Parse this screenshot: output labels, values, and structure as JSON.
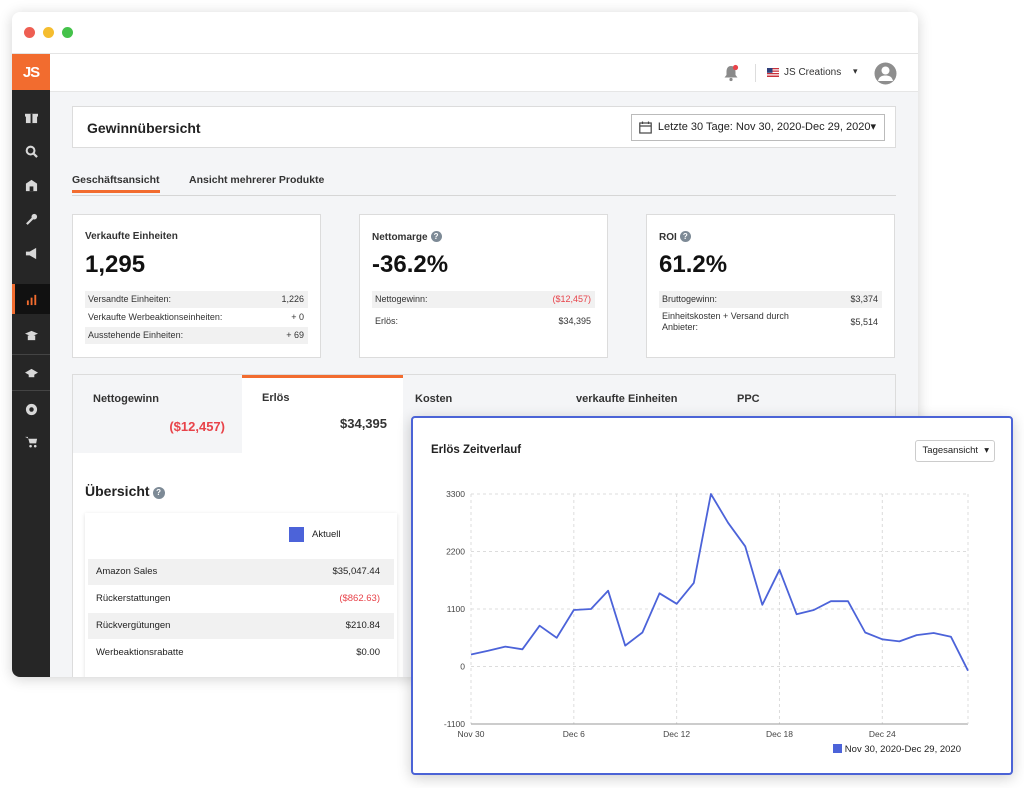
{
  "logo": "JS",
  "header": {
    "account_name": "JS Creations"
  },
  "page": {
    "title": "Gewinnübersicht",
    "date_range": "Letzte 30 Tage: Nov 30, 2020-Dec 29, 2020"
  },
  "tabs": [
    "Geschäftsansicht",
    "Ansicht mehrerer Produkte"
  ],
  "metrics": [
    {
      "label": "Verkaufte Einheiten",
      "value": "1,295",
      "rows": [
        {
          "label": "Versandte Einheiten:",
          "value": "1,226"
        },
        {
          "label": "Verkaufte Werbeaktionseinheiten:",
          "value": "+ 0"
        },
        {
          "label": "Ausstehende Einheiten:",
          "value": "+ 69"
        }
      ]
    },
    {
      "label": "Nettomarge",
      "value": "-36.2%",
      "rows": [
        {
          "label": "Nettogewinn:",
          "value": "($12,457)"
        },
        {
          "label": "Erlös:",
          "value": "$34,395"
        }
      ]
    },
    {
      "label": "ROI",
      "value": "61.2%",
      "rows": [
        {
          "label": "Bruttogewinn:",
          "value": "$3,374"
        },
        {
          "label": "Einheitskosten + Versand durch Anbieter:",
          "value": "$5,514"
        }
      ]
    }
  ],
  "subtabs": [
    {
      "label": "Nettogewinn",
      "value": "($12,457)"
    },
    {
      "label": "Erlös",
      "value": "$34,395"
    },
    {
      "label": "Kosten",
      "value": ""
    },
    {
      "label": "verkaufte Einheiten",
      "value": ""
    },
    {
      "label": "PPC",
      "value": ""
    }
  ],
  "overview": {
    "title": "Übersicht",
    "legend": "Aktuell",
    "rows": [
      {
        "label": "Amazon Sales",
        "value": "$35,047.44"
      },
      {
        "label": "Rückerstattungen",
        "value": "($862.63)"
      },
      {
        "label": "Rückvergütungen",
        "value": "$210.84"
      },
      {
        "label": "Werbeaktionsrabatte",
        "value": "$0.00"
      }
    ]
  },
  "popup": {
    "title": "Erlös Zeitverlauf",
    "view_button": "Tagesansicht"
  },
  "colors": {
    "accent": "#f26c2f",
    "negative": "#e8434a",
    "series": "#4c63d9",
    "popup_border": "#4b63d6"
  },
  "icons": [
    "bell-icon",
    "us-flag-icon",
    "user-avatar-icon",
    "calendar-icon"
  ],
  "chart_data": {
    "type": "line",
    "title": "Erlös Zeitverlauf",
    "x_tick_labels": [
      "Nov 30",
      "Dec 6",
      "Dec 12",
      "Dec 18",
      "Dec 24"
    ],
    "y_ticks": [
      -1100,
      0,
      1100,
      2200,
      3300
    ],
    "ylim": [
      -1100,
      3300
    ],
    "grid": true,
    "legend_position": "bottom-right",
    "series": [
      {
        "name": "Nov 30, 2020-Dec 29, 2020",
        "x": [
          "Nov 30",
          "Dec 1",
          "Dec 2",
          "Dec 3",
          "Dec 4",
          "Dec 5",
          "Dec 6",
          "Dec 7",
          "Dec 8",
          "Dec 9",
          "Dec 10",
          "Dec 11",
          "Dec 12",
          "Dec 13",
          "Dec 14",
          "Dec 15",
          "Dec 16",
          "Dec 17",
          "Dec 18",
          "Dec 19",
          "Dec 20",
          "Dec 21",
          "Dec 22",
          "Dec 23",
          "Dec 24",
          "Dec 25",
          "Dec 26",
          "Dec 27",
          "Dec 28",
          "Dec 29"
        ],
        "values": [
          230,
          300,
          380,
          330,
          780,
          550,
          1080,
          1100,
          1450,
          400,
          650,
          1400,
          1200,
          1600,
          3300,
          2750,
          2300,
          1180,
          1850,
          1000,
          1080,
          1250,
          1250,
          650,
          520,
          480,
          600,
          640,
          570,
          -80
        ]
      }
    ]
  }
}
